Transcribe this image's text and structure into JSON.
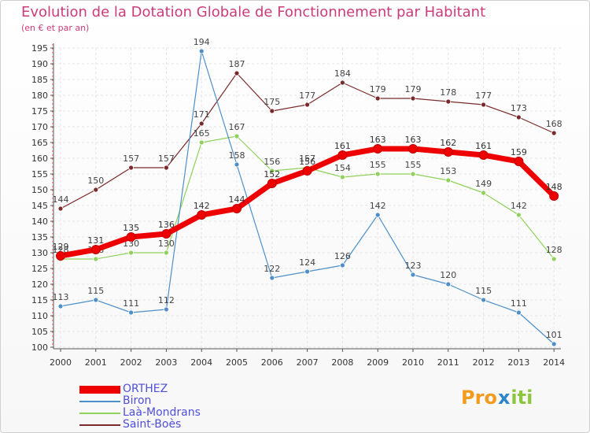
{
  "header": {
    "title": "Evolution de la Dotation Globale de Fonctionnement par Habitant",
    "subtitle": "(en € et par an)"
  },
  "logo": {
    "text": "Prox iti",
    "letters": [
      "P",
      "r",
      "o",
      "x",
      "i",
      "t",
      "i"
    ],
    "colors": [
      "#f29b1d",
      "#f29b1d",
      "#f29b1d",
      "#2c86c8",
      "#8cc63f",
      "#8cc63f",
      "#8cc63f"
    ]
  },
  "chart_data": {
    "type": "line",
    "title": "Evolution de la Dotation Globale de Fonctionnement par Habitant",
    "subtitle": "(en € et par an)",
    "xlabel": "",
    "ylabel": "",
    "x": [
      "2000",
      "2001",
      "2002",
      "2003",
      "2004",
      "2005",
      "2006",
      "2007",
      "2008",
      "2009",
      "2010",
      "2011",
      "2012",
      "2013",
      "2014"
    ],
    "ylim": [
      100,
      195
    ],
    "yticks": [
      100,
      105,
      110,
      115,
      120,
      125,
      130,
      135,
      140,
      145,
      150,
      155,
      160,
      165,
      170,
      175,
      180,
      185,
      190,
      195
    ],
    "grid": true,
    "legend": "bottom-left",
    "series": [
      {
        "name": "ORTHEZ",
        "color": "#ee0000",
        "values": [
          129,
          131,
          135,
          136,
          142,
          144,
          152,
          156,
          161,
          163,
          163,
          162,
          161,
          159,
          148
        ]
      },
      {
        "name": "Biron",
        "color": "#4d8fc9",
        "values": [
          113,
          115,
          111,
          112,
          194,
          158,
          122,
          124,
          126,
          142,
          123,
          120,
          115,
          111,
          101
        ]
      },
      {
        "name": "Laà-Mondrans",
        "color": "#8fd15a",
        "values": [
          128,
          128,
          130,
          130,
          165,
          167,
          156,
          157,
          154,
          155,
          155,
          153,
          149,
          142,
          128
        ]
      },
      {
        "name": "Saint-Boès",
        "color": "#7a2a2a",
        "values": [
          144,
          150,
          157,
          157,
          171,
          187,
          175,
          177,
          184,
          179,
          179,
          178,
          177,
          173,
          168
        ]
      }
    ]
  }
}
